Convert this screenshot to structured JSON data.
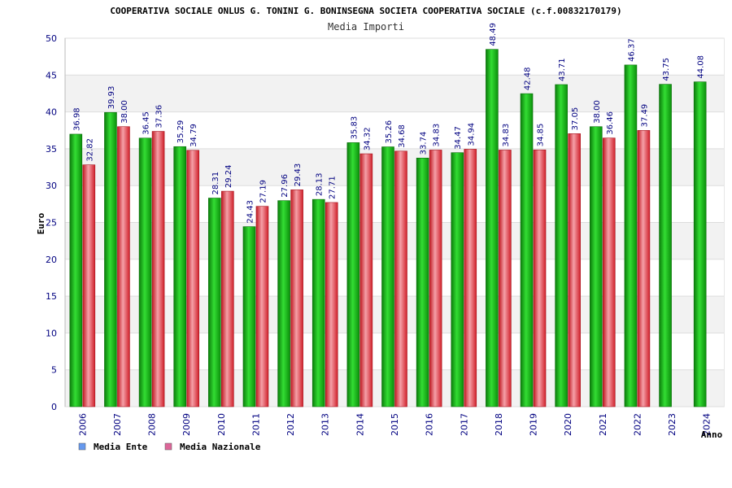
{
  "chart_data": {
    "type": "bar",
    "title": "COOPERATIVA SOCIALE ONLUS G. TONINI G. BONINSEGNA SOCIETA COOPERATIVA SOCIALE (c.f.00832170179)",
    "subtitle": "Media Importi",
    "xlabel": "Anno",
    "ylabel": "Euro",
    "ylim": [
      0,
      50
    ],
    "yticks": [
      0,
      5,
      10,
      15,
      20,
      25,
      30,
      35,
      40,
      45,
      50
    ],
    "grid": true,
    "legend_position": "bottom-left",
    "categories": [
      "2006",
      "2007",
      "2008",
      "2009",
      "2010",
      "2011",
      "2012",
      "2013",
      "2014",
      "2015",
      "2016",
      "2017",
      "2018",
      "2019",
      "2020",
      "2021",
      "2022",
      "2023",
      "2024"
    ],
    "series": [
      {
        "name": "Media Ente",
        "legend_color": "#6699ee",
        "bar_color": "#1aa31a",
        "values": [
          36.98,
          39.93,
          36.45,
          35.29,
          28.31,
          24.43,
          27.96,
          28.13,
          35.83,
          35.26,
          33.74,
          34.47,
          48.49,
          42.48,
          43.71,
          38.0,
          46.37,
          43.75,
          44.08
        ],
        "labels": [
          "36.98",
          "39.93",
          "36.45",
          "35.29",
          "28.31",
          "24.43",
          "27.96",
          "28.13",
          "35.83",
          "35.26",
          "33.74",
          "34.47",
          "48.49",
          "42.48",
          "43.71",
          "38.00",
          "46.37",
          "43.75",
          "44.08"
        ]
      },
      {
        "name": "Media Nazionale",
        "legend_color": "#dd6699",
        "bar_color": "#e0303a",
        "values": [
          32.82,
          38.0,
          37.36,
          34.79,
          29.24,
          27.19,
          29.43,
          27.71,
          34.32,
          34.68,
          34.83,
          34.94,
          34.83,
          34.85,
          37.05,
          36.46,
          37.49,
          null,
          null
        ],
        "labels": [
          "32.82",
          "38.00",
          "37.36",
          "34.79",
          "29.24",
          "27.19",
          "29.43",
          "27.71",
          "34.32",
          "34.68",
          "34.83",
          "34.94",
          "34.83",
          "34.85",
          "37.05",
          "36.46",
          "37.49",
          null,
          null
        ]
      }
    ]
  }
}
